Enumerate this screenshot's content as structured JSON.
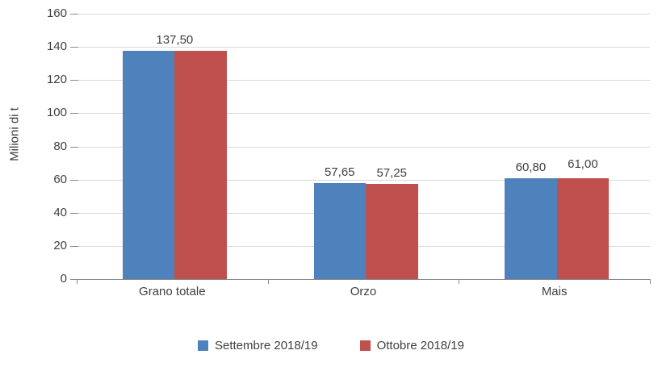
{
  "chart_data": {
    "type": "bar",
    "title": "",
    "xlabel": "",
    "ylabel": "Milioni di t",
    "ylim": [
      0,
      160
    ],
    "yticks": [
      0,
      20,
      40,
      60,
      80,
      100,
      120,
      140,
      160
    ],
    "grid": true,
    "legend_position": "bottom",
    "categories": [
      "Grano totale",
      "Orzo",
      "Mais"
    ],
    "series": [
      {
        "name": "Settembre 2018/19",
        "color": "#4F81BD",
        "values": [
          137.5,
          57.65,
          60.8
        ],
        "labels": [
          "137,50",
          "57,65",
          "60,80"
        ]
      },
      {
        "name": "Ottobre 2018/19",
        "color": "#C0504D",
        "values": [
          137.5,
          57.25,
          61.0
        ],
        "labels": [
          "137,50",
          "57,25",
          "61,00"
        ]
      }
    ],
    "label_layout": [
      "merged",
      "split",
      "split"
    ],
    "colors": {
      "gridline": "#D9D9D9",
      "axis": "#898989",
      "text": "#3F3F3F"
    }
  }
}
